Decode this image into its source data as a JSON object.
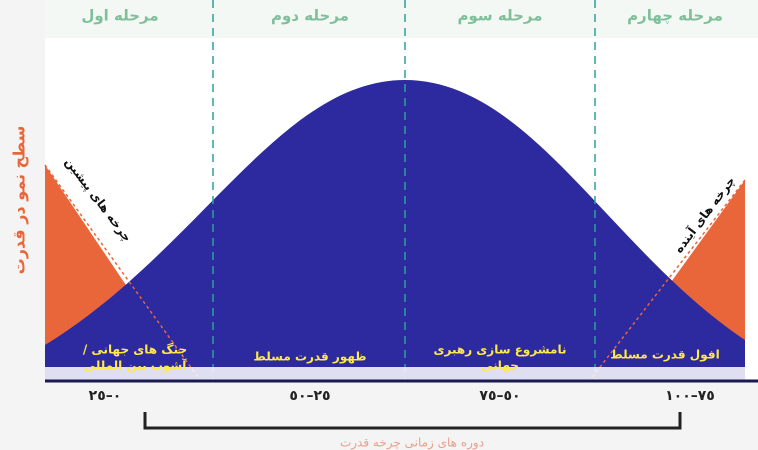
{
  "phases": [
    "مرحله اول",
    "مرحله دوم",
    "مرحله سوم",
    "مرحله چهارم"
  ],
  "y_axis_label": "سطح نمو در قدرت",
  "previous_cycles": "چرخه های پیشین",
  "future_cycles": "چرخه های آینده",
  "regions": [
    [
      "جنگ های جهانی /",
      "آشوب بین المللی"
    ],
    [
      "ظهور قدرت مسلط"
    ],
    [
      "نامشروع سازی رهبری",
      "جهانی"
    ],
    [
      "افول قدرت مسلط"
    ]
  ],
  "periods": [
    "٠–٢٥",
    "٢٥–٥٠",
    "٥٠–٧٥",
    "٧٥–١٠٠"
  ],
  "bracket_label": "دوره های زمانی چرخه قدرت"
}
